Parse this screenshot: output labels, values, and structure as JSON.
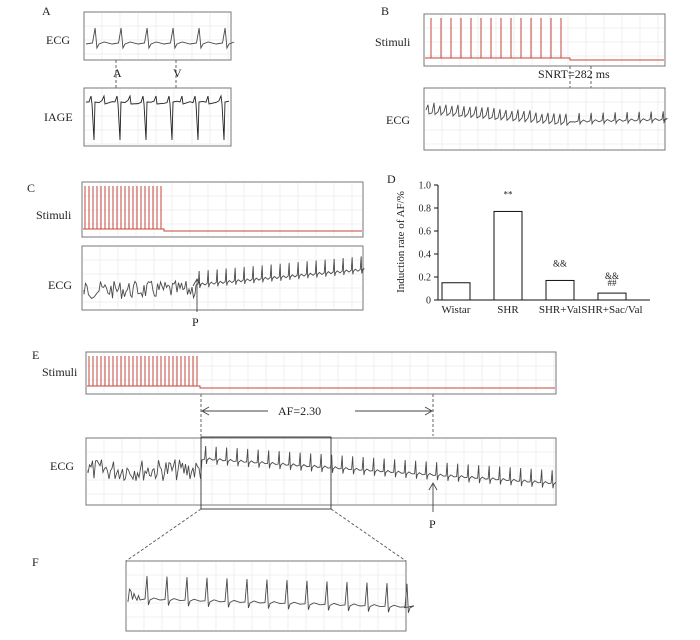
{
  "panels": {
    "A": {
      "letter": "A",
      "row1_label": "ECG",
      "row2_label": "IAGE",
      "marker_a": "A",
      "marker_v": "V"
    },
    "B": {
      "letter": "B",
      "stimuli_label": "Stimuli",
      "ecg_label": "ECG",
      "annotation": "SNRT=282 ms"
    },
    "C": {
      "letter": "C",
      "stimuli_label": "Stimuli",
      "ecg_label": "ECG",
      "marker_p": "P"
    },
    "E": {
      "letter": "E",
      "stimuli_label": "Stimuli",
      "ecg_label": "ECG",
      "annotation": "AF=2.30",
      "marker_p": "P"
    },
    "F": {
      "letter": "F"
    }
  },
  "chart_data": {
    "panel": "D",
    "type": "bar",
    "title": "",
    "xlabel": "",
    "ylabel": "Induction rate of AF/%",
    "categories": [
      "Wistar",
      "SHR",
      "SHR+Val",
      "SHR+Sac/Val"
    ],
    "values": [
      0.15,
      0.77,
      0.17,
      0.06
    ],
    "ylim": [
      0,
      1.0
    ],
    "yticks": [
      "0",
      "0.2",
      "0.4",
      "0.6",
      "0.8",
      "1.0"
    ],
    "annotations": [
      {
        "category": "SHR",
        "text": "**"
      },
      {
        "category": "SHR+Val",
        "text": "&&"
      },
      {
        "category": "SHR+Sac/Val",
        "text": "&&"
      },
      {
        "category": "SHR+Sac/Val",
        "text": "##"
      }
    ],
    "colors": {
      "bar_fill": "#ffffff",
      "bar_stroke": "#111111"
    }
  },
  "colors": {
    "stimulus": "#c4453e",
    "trace": "#4a4a4a"
  }
}
